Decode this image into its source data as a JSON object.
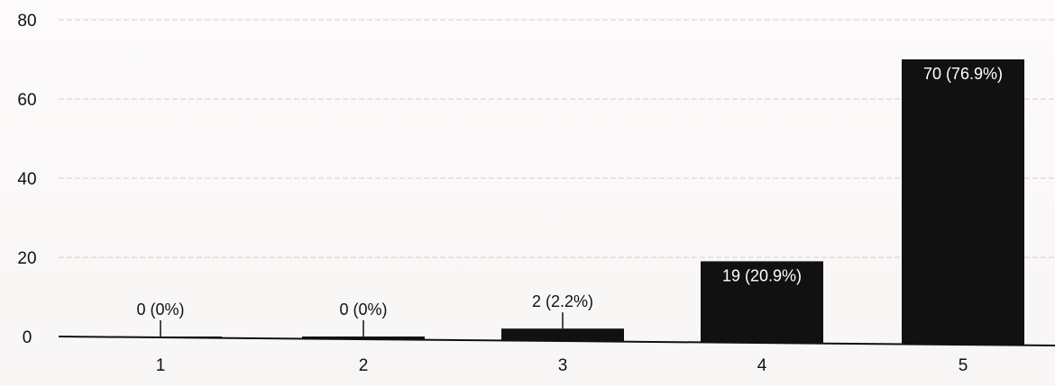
{
  "chart_data": {
    "type": "bar",
    "categories": [
      "1",
      "2",
      "3",
      "4",
      "5"
    ],
    "values": [
      0,
      0,
      2,
      19,
      70
    ],
    "data_labels": [
      "0 (0%)",
      "0 (0%)",
      "2 (2.2%)",
      "19 (20.9%)",
      "70 (76.9%)"
    ],
    "ylim": [
      0,
      80
    ],
    "yticks": [
      "0",
      "20",
      "40",
      "60",
      "80"
    ],
    "grid": true,
    "bar_color": "#111111",
    "title": "",
    "xlabel": "",
    "ylabel": ""
  }
}
